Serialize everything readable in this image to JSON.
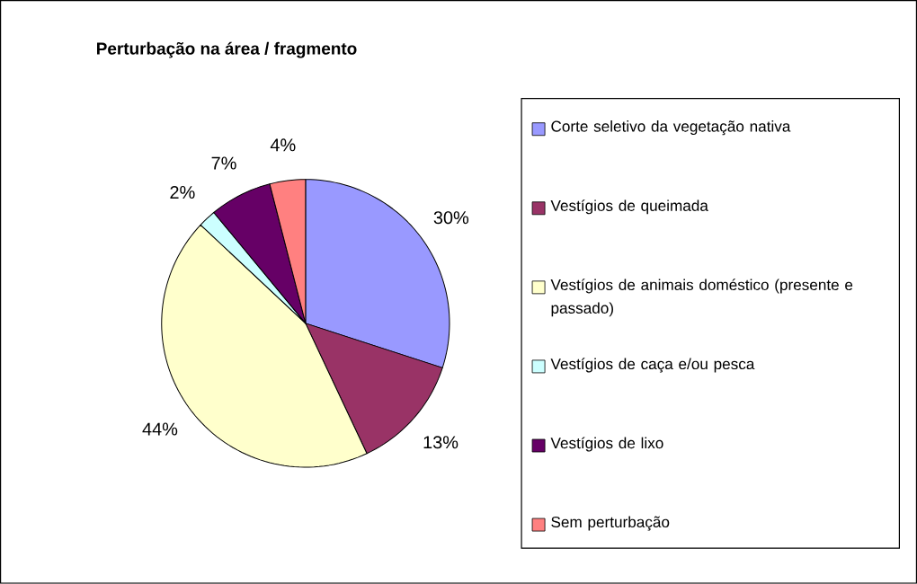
{
  "chart_data": {
    "type": "pie",
    "title": "Perturbação na área / fragmento",
    "categories": [
      "Corte seletivo da vegetação nativa",
      "Vestígios de queimada",
      "Vestígios de animais doméstico (presente e passado)",
      "Vestígios de caça e/ou pesca",
      "Vestígios de lixo",
      "Sem perturbação"
    ],
    "values": [
      30,
      13,
      44,
      2,
      7,
      4
    ],
    "value_labels": [
      "30%",
      "13%",
      "44%",
      "2%",
      "7%",
      "4%"
    ],
    "colors": [
      "#9999ff",
      "#993366",
      "#ffffcc",
      "#ccffff",
      "#660066",
      "#ff8080"
    ],
    "legend": "right"
  }
}
